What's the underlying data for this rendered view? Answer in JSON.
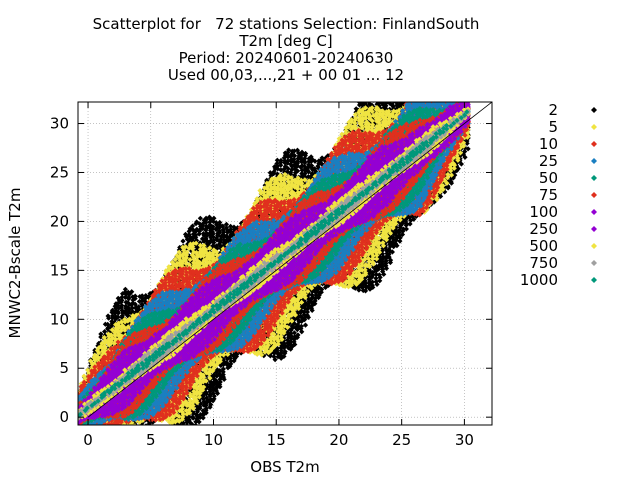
{
  "chart_data": {
    "type": "scatter",
    "title_lines": [
      "Scatterplot for   72 stations Selection: FinlandSouth",
      "T2m [deg C]",
      "Period: 20240601-20240630",
      "Used 00,03,...,21 + 00 01 ... 12"
    ],
    "xlabel": "OBS T2m",
    "ylabel": "MNWC2-Bscale T2m",
    "xlim": [
      -0.8,
      32.2
    ],
    "ylim": [
      -0.8,
      32.2
    ],
    "xticks": [
      0,
      5,
      10,
      15,
      20,
      25,
      30
    ],
    "yticks": [
      0,
      5,
      10,
      15,
      20,
      25,
      30
    ],
    "grid": true,
    "diagonal": {
      "from": [
        0,
        0
      ],
      "to": [
        32.2,
        32.2
      ]
    },
    "legend_placement": "right",
    "density_legend": [
      {
        "label": "2",
        "color": "#000000",
        "halfwidth": 9.5
      },
      {
        "label": "5",
        "color": "#f0e442",
        "halfwidth": 8.0
      },
      {
        "label": "10",
        "color": "#e0301e",
        "halfwidth": 6.6
      },
      {
        "label": "25",
        "color": "#1a7fc1",
        "halfwidth": 5.4
      },
      {
        "label": "50",
        "color": "#00987a",
        "halfwidth": 4.3
      },
      {
        "label": "75",
        "color": "#e0301e",
        "halfwidth": 3.6
      },
      {
        "label": "100",
        "color": "#9400d3",
        "halfwidth": 2.9
      },
      {
        "label": "250",
        "color": "#9400d3",
        "halfwidth": 1.9
      },
      {
        "label": "500",
        "color": "#f0e442",
        "halfwidth": 1.2
      },
      {
        "label": "750",
        "color": "#a0a0a0",
        "halfwidth": 0.7
      },
      {
        "label": "1000",
        "color": "#00987a",
        "halfwidth": 0.3
      }
    ],
    "point_cloud_extent": {
      "x": [
        -0.8,
        30.5
      ],
      "center_line_offset": 1.0
    }
  }
}
